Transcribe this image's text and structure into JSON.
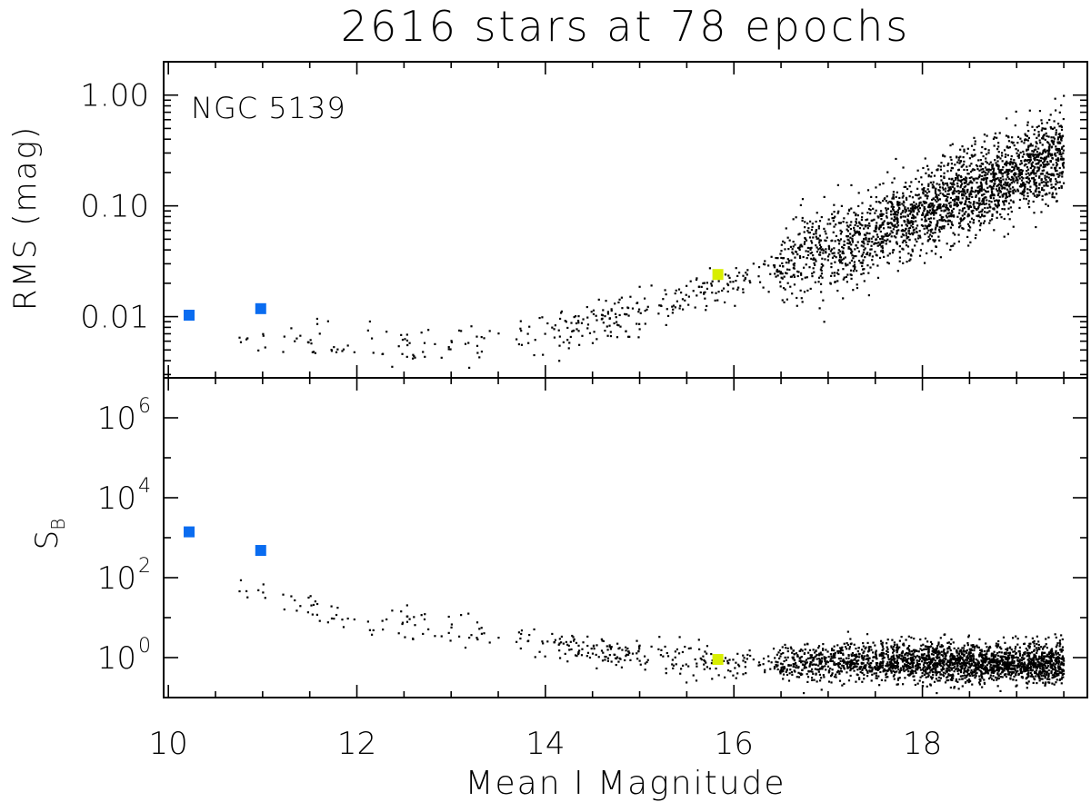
{
  "chart_data": [
    {
      "type": "scatter",
      "title": "2616 stars at 78 epochs",
      "annotation": "NGC 5139",
      "xlabel": "Mean I Magnitude",
      "ylabel": "RMS (mag)",
      "yscale": "log",
      "xlim": [
        9.95,
        19.75
      ],
      "ylim": [
        0.0028,
        2.0
      ],
      "yticks": [
        0.01,
        0.1,
        1.0
      ],
      "ytick_labels": [
        "0.01",
        "0.10",
        "1.00"
      ],
      "n_stars": 2616,
      "highlighted_points": [
        {
          "x": 10.22,
          "y": 0.0103,
          "color": "#0A6CF0"
        },
        {
          "x": 10.98,
          "y": 0.0118,
          "color": "#0A6CF0"
        },
        {
          "x": 15.83,
          "y": 0.024,
          "color": "#D8EE00"
        }
      ],
      "trend": [
        {
          "x": 11.0,
          "y": 0.006
        },
        {
          "x": 12.0,
          "y": 0.0055
        },
        {
          "x": 13.0,
          "y": 0.0055
        },
        {
          "x": 14.0,
          "y": 0.007
        },
        {
          "x": 15.0,
          "y": 0.011
        },
        {
          "x": 16.0,
          "y": 0.02
        },
        {
          "x": 17.0,
          "y": 0.04
        },
        {
          "x": 18.0,
          "y": 0.09
        },
        {
          "x": 19.0,
          "y": 0.2
        },
        {
          "x": 19.5,
          "y": 0.3
        }
      ]
    },
    {
      "type": "scatter",
      "xlabel": "Mean I Magnitude",
      "ylabel": "S_B",
      "yscale": "log",
      "xlim": [
        9.95,
        19.75
      ],
      "ylim": [
        0.1,
        10000000.0
      ],
      "yticks": [
        1,
        100,
        10000,
        1000000
      ],
      "ytick_labels": [
        {
          "base": "10",
          "exp": "0"
        },
        {
          "base": "10",
          "exp": "2"
        },
        {
          "base": "10",
          "exp": "4"
        },
        {
          "base": "10",
          "exp": "6"
        }
      ],
      "xticks": [
        10,
        12,
        14,
        16,
        18
      ],
      "xtick_labels": [
        "10",
        "12",
        "14",
        "16",
        "18"
      ],
      "highlighted_points": [
        {
          "x": 10.22,
          "y": 1400,
          "color": "#0A6CF0"
        },
        {
          "x": 10.98,
          "y": 480,
          "color": "#0A6CF0"
        },
        {
          "x": 15.83,
          "y": 0.9,
          "color": "#D8EE00"
        }
      ],
      "trend": [
        {
          "x": 11.0,
          "y": 40
        },
        {
          "x": 12.0,
          "y": 10
        },
        {
          "x": 13.0,
          "y": 5
        },
        {
          "x": 14.0,
          "y": 2.5
        },
        {
          "x": 15.0,
          "y": 1.2
        },
        {
          "x": 16.0,
          "y": 0.7
        },
        {
          "x": 17.0,
          "y": 0.8
        },
        {
          "x": 18.0,
          "y": 0.8
        },
        {
          "x": 19.0,
          "y": 0.7
        }
      ]
    }
  ]
}
